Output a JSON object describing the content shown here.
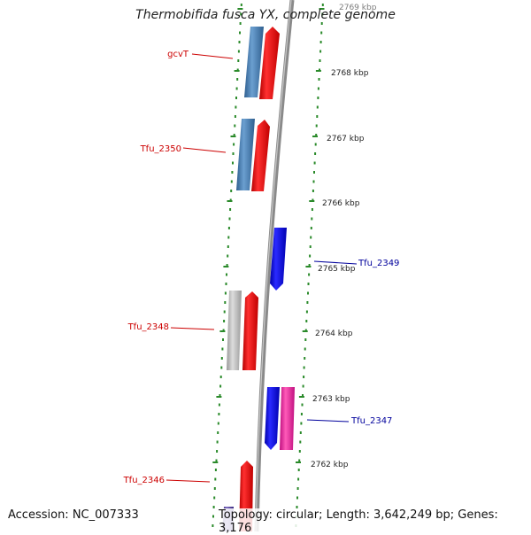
{
  "title": "Thermobifida fusca YX, complete genome",
  "footer": {
    "accession": "Accession: NC_007333",
    "topology": "Topology: circular; Length: 3,642,249 bp; Genes: 3,176"
  },
  "colors": {
    "backbone": "#8a8a8a",
    "dots": "#2a8a2a",
    "red_label": "#cc0000",
    "blue_label": "#00009c",
    "gene_red": "#ff0000",
    "gene_blue": "#0000ff",
    "gene_steel": "#4a7fb5",
    "gene_gray": "#bdbdbd",
    "gene_pink": "#ee2aa0"
  },
  "ticks": [
    {
      "label": "2769 kbp",
      "faded": true
    },
    {
      "label": "2768 kbp"
    },
    {
      "label": "2767 kbp"
    },
    {
      "label": "2766 kbp"
    },
    {
      "label": "2765 kbp"
    },
    {
      "label": "2764 kbp"
    },
    {
      "label": "2763 kbp"
    },
    {
      "label": "2762 kbp"
    }
  ],
  "gene_labels": [
    {
      "text": "gcvT",
      "color": "red"
    },
    {
      "text": "Tfu_2350",
      "color": "red"
    },
    {
      "text": "Tfu_2349",
      "color": "blue"
    },
    {
      "text": "Tfu_2348",
      "color": "red"
    },
    {
      "text": "Tfu_2347",
      "color": "blue"
    },
    {
      "text": "Tfu_2346",
      "color": "red"
    }
  ]
}
